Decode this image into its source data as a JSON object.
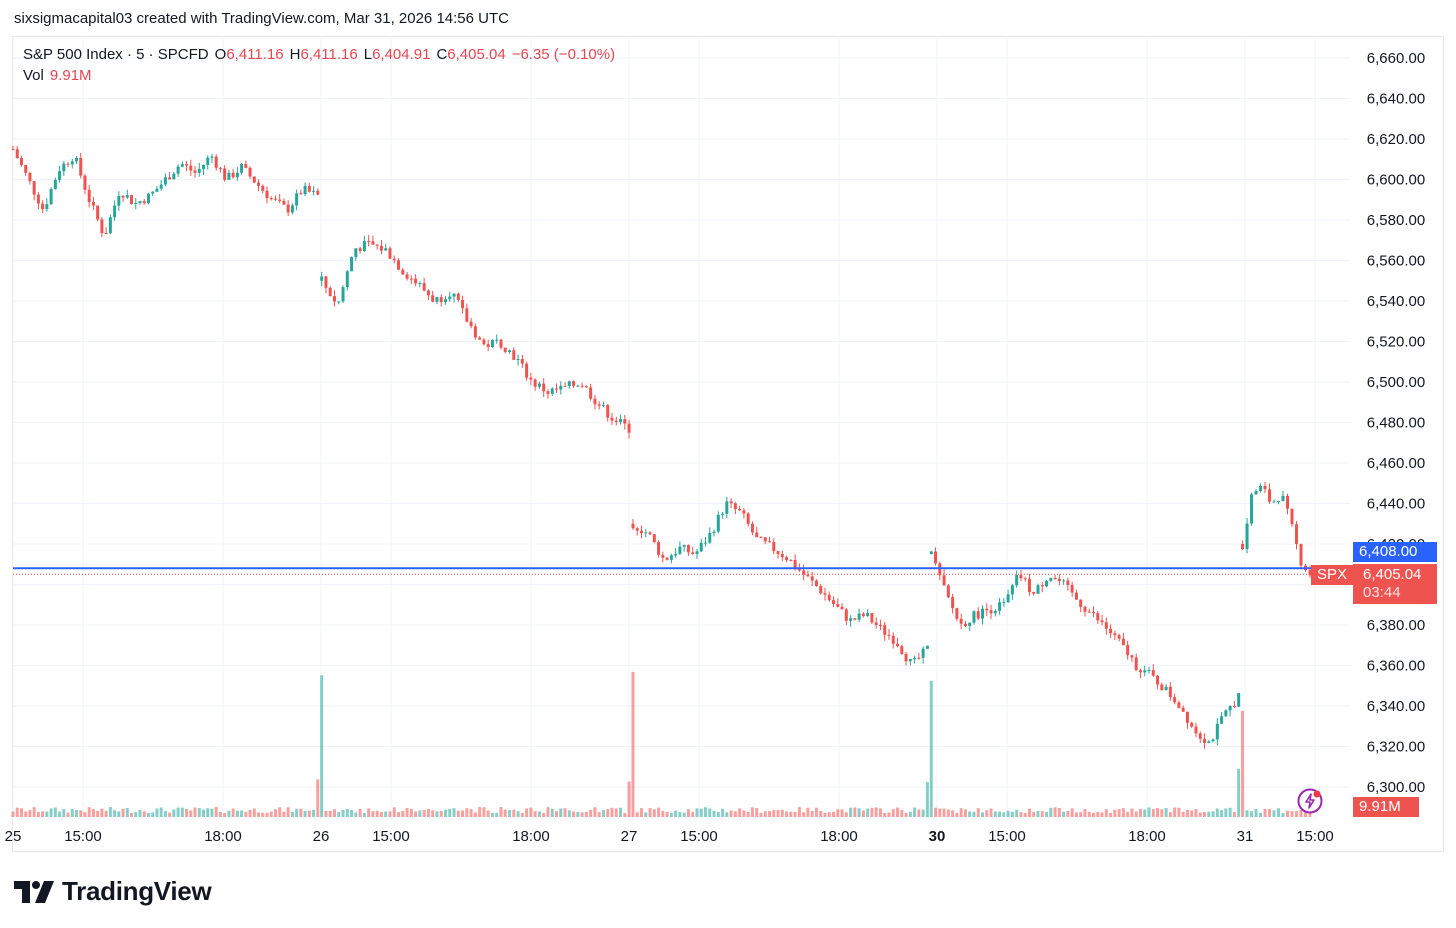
{
  "header": {
    "text": "sixsigmacapital03 created with TradingView.com, Mar 31, 2026 14:56 UTC"
  },
  "legend": {
    "symbol": "S&P 500 Index · 5 · SPCFD",
    "o_label": "O",
    "o_value": "6,411.16",
    "h_label": "H",
    "h_value": "6,411.16",
    "l_label": "L",
    "l_value": "6,404.91",
    "c_label": "C",
    "c_value": "6,405.04",
    "change": "−6.35 (−0.10%)",
    "vol_label": "Vol",
    "vol_value": "9.91M"
  },
  "badges": {
    "crosshair_price": "6,408.00",
    "ticker": "SPX",
    "last_price": "6,405.04",
    "countdown": "03:44",
    "volume": "9.91M"
  },
  "colors": {
    "up": "#26a69a",
    "down": "#ef5350",
    "crosshair": "#2962ff",
    "grid": "#f0f3fa",
    "text": "#131722"
  },
  "logo": {
    "text": "TradingView",
    "icon": "tradingview-logo-icon"
  },
  "chart_data": {
    "type": "candlestick",
    "title": "S&P 500 Index · 5 · SPCFD",
    "y_ticks": [
      "6,300.00",
      "6,320.00",
      "6,340.00",
      "6,360.00",
      "6,380.00",
      "6,400.00",
      "6,420.00",
      "6,440.00",
      "6,460.00",
      "6,480.00",
      "6,500.00",
      "6,520.00",
      "6,540.00",
      "6,560.00",
      "6,580.00",
      "6,600.00",
      "6,620.00",
      "6,640.00",
      "6,660.00"
    ],
    "x_ticks": [
      {
        "label": "25",
        "pos": 0.0
      },
      {
        "label": "15:00",
        "pos": 0.05
      },
      {
        "label": "18:00",
        "pos": 0.15
      },
      {
        "label": "26",
        "pos": 0.22
      },
      {
        "label": "15:00",
        "pos": 0.27
      },
      {
        "label": "18:00",
        "pos": 0.37
      },
      {
        "label": "27",
        "pos": 0.44
      },
      {
        "label": "15:00",
        "pos": 0.49
      },
      {
        "label": "18:00",
        "pos": 0.59
      },
      {
        "label": "30",
        "pos": 0.66,
        "bold": true
      },
      {
        "label": "15:00",
        "pos": 0.71
      },
      {
        "label": "18:00",
        "pos": 0.81
      },
      {
        "label": "31",
        "pos": 0.88
      },
      {
        "label": "15:00",
        "pos": 0.93
      }
    ],
    "ylim": [
      6290,
      6670
    ],
    "crosshair_price": 6408,
    "last_price": 6405.04,
    "sessions": [
      {
        "name": "Mar 25",
        "path": [
          6615,
          6600,
          6585,
          6605,
          6612,
          6590,
          6572,
          6595,
          6588,
          6592,
          6600,
          6608,
          6603,
          6612,
          6600,
          6606,
          6598,
          6590,
          6585,
          6595,
          6592
        ]
      },
      {
        "name": "Mar 26",
        "path": [
          6550,
          6538,
          6566,
          6568,
          6565,
          6555,
          6548,
          6540,
          6545,
          6530,
          6518,
          6520,
          6512,
          6500,
          6495,
          6497,
          6500,
          6490,
          6482,
          6477
        ]
      },
      {
        "name": "Mar 27",
        "path": [
          6430,
          6425,
          6412,
          6418,
          6415,
          6425,
          6440,
          6435,
          6422,
          6418,
          6413,
          6405,
          6398,
          6390,
          6382,
          6385,
          6378,
          6372,
          6360,
          6368
        ]
      },
      {
        "name": "Mar 30",
        "path": [
          6415,
          6395,
          6380,
          6385,
          6388,
          6390,
          6405,
          6395,
          6405,
          6400,
          6392,
          6385,
          6378,
          6370,
          6360,
          6355,
          6348,
          6340,
          6328,
          6322,
          6335,
          6345
        ]
      },
      {
        "name": "Mar 31",
        "path": [
          6420,
          6445,
          6448,
          6440,
          6445,
          6430,
          6412,
          6405
        ]
      }
    ]
  }
}
